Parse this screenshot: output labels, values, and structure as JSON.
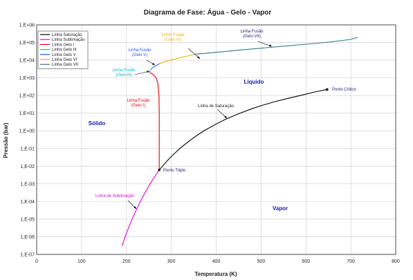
{
  "chart_data": {
    "type": "line",
    "title": "Diagrama de Fase: Água - Gelo - Vapor",
    "xlabel": "Temperatura (K)",
    "ylabel": "Pressão (bar)",
    "xlim": [
      0,
      800
    ],
    "ylim_log10": [
      -7,
      6
    ],
    "y_scale": "log",
    "grid": true,
    "legend_position": "top-left",
    "x_ticks": [
      "0",
      "100",
      "200",
      "300",
      "400",
      "500",
      "600",
      "700",
      "800"
    ],
    "y_ticks": [
      "1,E+06",
      "1,E+05",
      "1,E+04",
      "1,E+03",
      "1,E+02",
      "1,E+01",
      "1,E+00",
      "1,E-01",
      "1,E-02",
      "1,E-03",
      "1,E-04",
      "1,E-05",
      "1,E-06",
      "1,E-07"
    ],
    "series": [
      {
        "name": "Linha Saturação",
        "color": "#000000",
        "points": [
          [
            273.16,
            0.00612
          ],
          [
            290,
            0.019
          ],
          [
            300,
            0.035
          ],
          [
            320,
            0.105
          ],
          [
            340,
            0.27
          ],
          [
            360,
            0.62
          ],
          [
            373,
            1.01
          ],
          [
            400,
            2.45
          ],
          [
            420,
            4.4
          ],
          [
            450,
            9.3
          ],
          [
            480,
            17.9
          ],
          [
            500,
            26.4
          ],
          [
            530,
            44.5
          ],
          [
            560,
            69
          ],
          [
            590,
            104
          ],
          [
            620,
            159
          ],
          [
            647.1,
            220.6
          ]
        ]
      },
      {
        "name": "Linha Sublimação",
        "color": "#e000e0",
        "points": [
          [
            190,
            3e-07
          ],
          [
            200,
            1.6e-06
          ],
          [
            210,
            6.8e-06
          ],
          [
            220,
            2.6e-05
          ],
          [
            230,
            9e-05
          ],
          [
            240,
            0.00027
          ],
          [
            250,
            0.00076
          ],
          [
            260,
            0.00196
          ],
          [
            273.16,
            0.00612
          ]
        ]
      },
      {
        "name": "Linha Gelo I",
        "color": "#e00000",
        "points": [
          [
            273.16,
            0.00612
          ],
          [
            273.1,
            10
          ],
          [
            272.5,
            100
          ],
          [
            270,
            500
          ],
          [
            266,
            1000
          ],
          [
            260,
            1500
          ],
          [
            251.2,
            2090
          ]
        ]
      },
      {
        "name": "Linha Gelo III",
        "color": "#00b8d8",
        "points": [
          [
            251.2,
            2090
          ],
          [
            253,
            2500
          ],
          [
            256.2,
            3460
          ]
        ]
      },
      {
        "name": "Linha Gelo V",
        "color": "#2050ff",
        "points": [
          [
            256.2,
            3460
          ],
          [
            265,
            4800
          ],
          [
            273.3,
            6300
          ]
        ]
      },
      {
        "name": "Linha Gelo VI",
        "color": "#f0b000",
        "points": [
          [
            273.3,
            6300
          ],
          [
            290,
            9000
          ],
          [
            310,
            12000
          ],
          [
            330,
            16000
          ],
          [
            355,
            22160
          ]
        ]
      },
      {
        "name": "Linha Gelo VII",
        "color": "#2a7a80",
        "points": [
          [
            355,
            22160
          ],
          [
            400,
            28000
          ],
          [
            450,
            37000
          ],
          [
            500,
            48000
          ],
          [
            550,
            62000
          ],
          [
            600,
            80000
          ],
          [
            650,
            105000
          ],
          [
            700,
            150000
          ],
          [
            715,
            200000
          ]
        ]
      }
    ],
    "markers": [
      {
        "name": "Ponto Triplo",
        "x": 273.16,
        "y": 0.00612
      },
      {
        "name": "Ponto Crítico",
        "x": 647.1,
        "y": 220.6
      }
    ],
    "annotations": [
      {
        "text": "Linha Fusão",
        "text2": "(Gelo VI)",
        "color": "#f0b000"
      },
      {
        "text": "Linha Fusão",
        "text2": "(Gelo VII)",
        "color": "#1a1a6a"
      },
      {
        "text": "Linha Fusão",
        "text2": "(Gelo V)",
        "color": "#2050ff"
      },
      {
        "text": "Linha Fusão",
        "text2": "(Gelo III)",
        "color": "#00b8d8"
      },
      {
        "text": "Linha Fusão",
        "text2": "(Gelo I)",
        "color": "#e00000"
      },
      {
        "text": "Linha de Saturação",
        "text2": "",
        "color": "#1a1a1a"
      },
      {
        "text": "Linha de Sublimação",
        "text2": "",
        "color": "#e000e0"
      },
      {
        "text": "Ponto Triplo",
        "text2": "",
        "color": "#1a1a6a"
      },
      {
        "text": "Ponto Crítico",
        "text2": "",
        "color": "#1a1a6a"
      }
    ],
    "regions": [
      {
        "text": "Líquido",
        "color": "#1a1aa0"
      },
      {
        "text": "Sólido",
        "color": "#1a1aa0"
      },
      {
        "text": "Vapor",
        "color": "#1a1aa0"
      }
    ]
  }
}
